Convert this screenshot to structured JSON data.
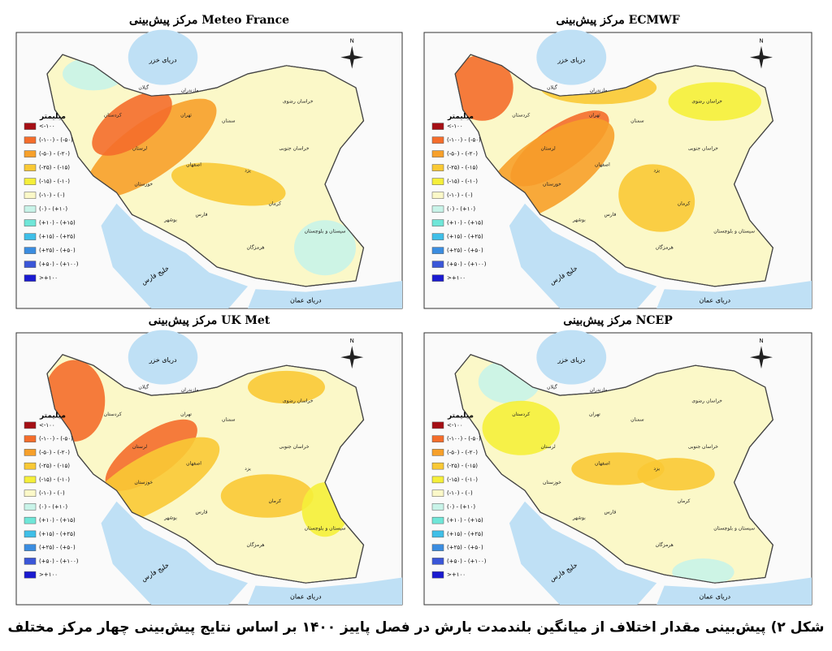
{
  "maps": [
    {
      "title": "مرکز پیش‌بینی Meteo France"
    },
    {
      "title": "مرکز پیش‌بینی ECMWF"
    },
    {
      "title": "مرکز پیش‌بینی UK Met"
    },
    {
      "title": "مرکز پیش‌بینی NCEP"
    }
  ],
  "legend": {
    "title": "میلیمتر",
    "items": [
      {
        "label": "<-۱۰۰",
        "color": "#a50f15"
      },
      {
        "label": "(-۱۰۰) - (-۵۰)",
        "color": "#f46d2b"
      },
      {
        "label": "(-۵۰) - (-۲۰)",
        "color": "#f7a02a"
      },
      {
        "label": "(-۲۵) - (-۱۵)",
        "color": "#f9c935"
      },
      {
        "label": "(-۱۵) - (-۱۰)",
        "color": "#f5ef3a"
      },
      {
        "label": "(-۱۰) - (۰)",
        "color": "#fbf8c8"
      },
      {
        "label": "(۰) - (+۱۰)",
        "color": "#c8f3e8"
      },
      {
        "label": "(+۱۰) - (+۱۵)",
        "color": "#6fe6d8"
      },
      {
        "label": "(+۱۵) - (+۲۵)",
        "color": "#3fbfe8"
      },
      {
        "label": "(+۲۵) - (+۵۰)",
        "color": "#3b8de0"
      },
      {
        "label": "(+۵۰) - (+۱۰۰)",
        "color": "#3a56d8"
      },
      {
        "label": ">+۱۰۰",
        "color": "#1a1ad0"
      }
    ]
  },
  "seas": {
    "caspian": "دریای خزر",
    "gulf": "خلیج فارس",
    "oman": "دریای عمان"
  },
  "north": "N",
  "provinces": [
    "گیلان",
    "مازندران",
    "تهران",
    "اصفهان",
    "فارس",
    "کرمان",
    "یزد",
    "خراسان رضوی",
    "سمنان",
    "سیستان و بلوچستان",
    "هرمزگان",
    "خوزستان",
    "کردستان",
    "بوشهر",
    "خراسان جنوبی",
    "لرستان"
  ],
  "caption": "شکل ۲) پیش‌بینی مقدار اختلاف از میانگین بلندمدت بارش در فصل پاییز ۱۴۰۰ بر اساس نتایج پیش‌بینی چهار مرکز مختلف"
}
